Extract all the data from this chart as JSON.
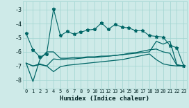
{
  "xlabel": "Humidex (Indice chaleur)",
  "ylabel": "",
  "xlim": [
    -0.5,
    23.5
  ],
  "ylim": [
    -8.6,
    -2.4
  ],
  "yticks": [
    -8,
    -7,
    -6,
    -5,
    -4,
    -3
  ],
  "xticks": [
    0,
    1,
    2,
    3,
    4,
    5,
    6,
    7,
    8,
    9,
    10,
    11,
    12,
    13,
    14,
    15,
    16,
    17,
    18,
    19,
    20,
    21,
    22,
    23
  ],
  "bg_color": "#ceeae8",
  "grid_color": "#9fd4d0",
  "line_color": "#006666",
  "line1_y": [
    -4.7,
    -5.85,
    -6.35,
    -6.15,
    -2.95,
    -4.85,
    -4.55,
    -4.75,
    -4.6,
    -4.45,
    -4.4,
    -3.95,
    -4.4,
    -4.05,
    -4.25,
    -4.3,
    -4.5,
    -4.5,
    -4.85,
    -4.9,
    -4.95,
    -5.55,
    -5.7,
    -7.0
  ],
  "line2_y": [
    -6.8,
    -8.1,
    -6.55,
    -6.0,
    -6.0,
    -6.45,
    -6.45,
    -6.4,
    -6.4,
    -6.35,
    -6.35,
    -6.3,
    -6.3,
    -6.25,
    -6.2,
    -6.15,
    -6.1,
    -6.05,
    -6.0,
    -5.25,
    -5.45,
    -5.25,
    -6.9,
    -7.0
  ],
  "line3_y": [
    -6.8,
    -7.0,
    -6.85,
    -7.0,
    -6.5,
    -6.55,
    -6.5,
    -6.5,
    -6.45,
    -6.4,
    -6.4,
    -6.35,
    -6.3,
    -6.25,
    -6.2,
    -6.1,
    -6.05,
    -5.95,
    -5.85,
    -5.8,
    -6.0,
    -6.1,
    -6.95,
    -7.0
  ],
  "line4_y": [
    -6.8,
    -7.0,
    -6.9,
    -7.0,
    -7.4,
    -7.05,
    -6.95,
    -6.9,
    -6.85,
    -6.8,
    -6.75,
    -6.7,
    -6.65,
    -6.6,
    -6.55,
    -6.45,
    -6.35,
    -6.25,
    -6.15,
    -6.55,
    -6.85,
    -6.95,
    -7.0,
    -7.0
  ]
}
